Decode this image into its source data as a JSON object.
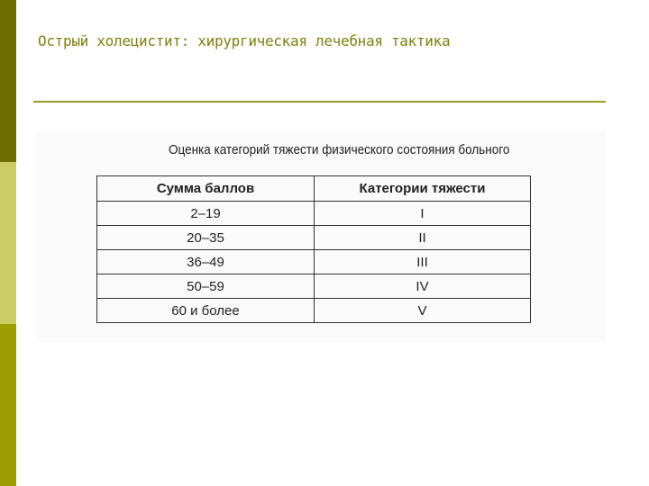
{
  "slide": {
    "title": "Острый холецистит: хирургическая лечебная тактика",
    "accent_colors": {
      "bar_top": "#6e6e00",
      "bar_middle": "#cccc66",
      "bar_bottom": "#9c9c00",
      "title": "#7f7f10"
    }
  },
  "figure": {
    "caption": "Оценка категорий тяжести физического состояния больного",
    "headers": [
      "Сумма баллов",
      "Категории тяжести"
    ],
    "rows": [
      [
        "2–19",
        "I"
      ],
      [
        "20–35",
        "II"
      ],
      [
        "36–49",
        "III"
      ],
      [
        "50–59",
        "IV"
      ],
      [
        "60 и более",
        "V"
      ]
    ]
  }
}
